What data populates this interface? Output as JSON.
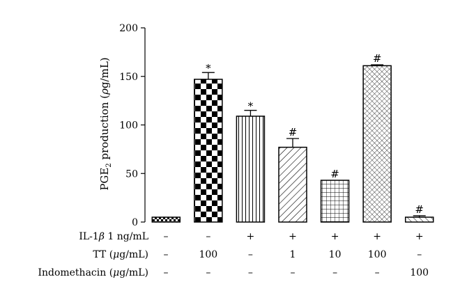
{
  "chart_data": {
    "type": "bar",
    "ylabel": "PGE2 production (ρg/mL)",
    "ylabel_parts": {
      "prefix": "PGE",
      "sub": "2",
      "middle": " production (",
      "italic": "ρ",
      "suffix": "g/mL)"
    },
    "ylim": [
      0,
      200
    ],
    "yticks": [
      "0",
      "50",
      "100",
      "150",
      "200"
    ],
    "grid": false,
    "values": [
      5,
      147,
      109,
      77,
      43,
      161,
      5
    ],
    "errors": [
      0,
      7,
      6,
      9,
      0,
      1,
      1.5
    ],
    "significance": [
      "",
      "*",
      "*",
      "#",
      "#",
      "#",
      "#"
    ],
    "patterns": [
      "dots",
      "checker",
      "vlines",
      "diag-down",
      "grid",
      "crosshatch-fine",
      "diag-up"
    ],
    "conditions": [
      {
        "name": "IL-1β 1 ng/mL",
        "values": [
          "–",
          "–",
          "+",
          "+",
          "+",
          "+",
          "+"
        ]
      },
      {
        "name": "TT (μg/mL)",
        "values": [
          "–",
          "100",
          "–",
          "1",
          "10",
          "100",
          "–"
        ]
      },
      {
        "name": "Indomethacin (μg/mL)",
        "values": [
          "–",
          "–",
          "–",
          "–",
          "–",
          "–",
          "100"
        ]
      }
    ],
    "condition_label_parts": [
      {
        "prefix": "IL-1",
        "italic": "β",
        "suffix": " 1 ng/mL"
      },
      {
        "prefix": "TT (",
        "italic": "μ",
        "suffix": "g/mL)"
      },
      {
        "prefix": "Indomethacin (",
        "italic": "μ",
        "suffix": "g/mL)"
      }
    ]
  }
}
